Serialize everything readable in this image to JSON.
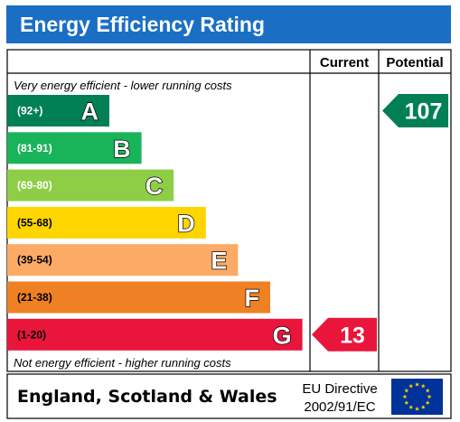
{
  "title": "Energy Efficiency Rating",
  "columns": {
    "current": "Current",
    "potential": "Potential"
  },
  "captions": {
    "top": "Very energy efficient - lower running costs",
    "bottom": "Not energy efficient - higher running costs"
  },
  "chart_data": {
    "type": "bar",
    "title": "Energy Efficiency Rating",
    "categories": [
      "A",
      "B",
      "C",
      "D",
      "E",
      "F",
      "G"
    ],
    "ranges": [
      "(92+)",
      "(81-91)",
      "(69-80)",
      "(55-68)",
      "(39-54)",
      "(21-38)",
      "(1-20)"
    ],
    "colors": [
      "#008054",
      "#19b459",
      "#8dce46",
      "#ffd500",
      "#fcaa65",
      "#ef8023",
      "#e9153b"
    ],
    "current": {
      "value": 13,
      "band": "G"
    },
    "potential": {
      "value": 107,
      "band": "A"
    }
  },
  "footer": {
    "region": "England, Scotland & Wales",
    "directive_line1": "EU Directive",
    "directive_line2": "2002/91/EC",
    "flag": {
      "name": "eu-flag-icon",
      "background": "#003399",
      "star_color": "#ffcc00"
    }
  }
}
